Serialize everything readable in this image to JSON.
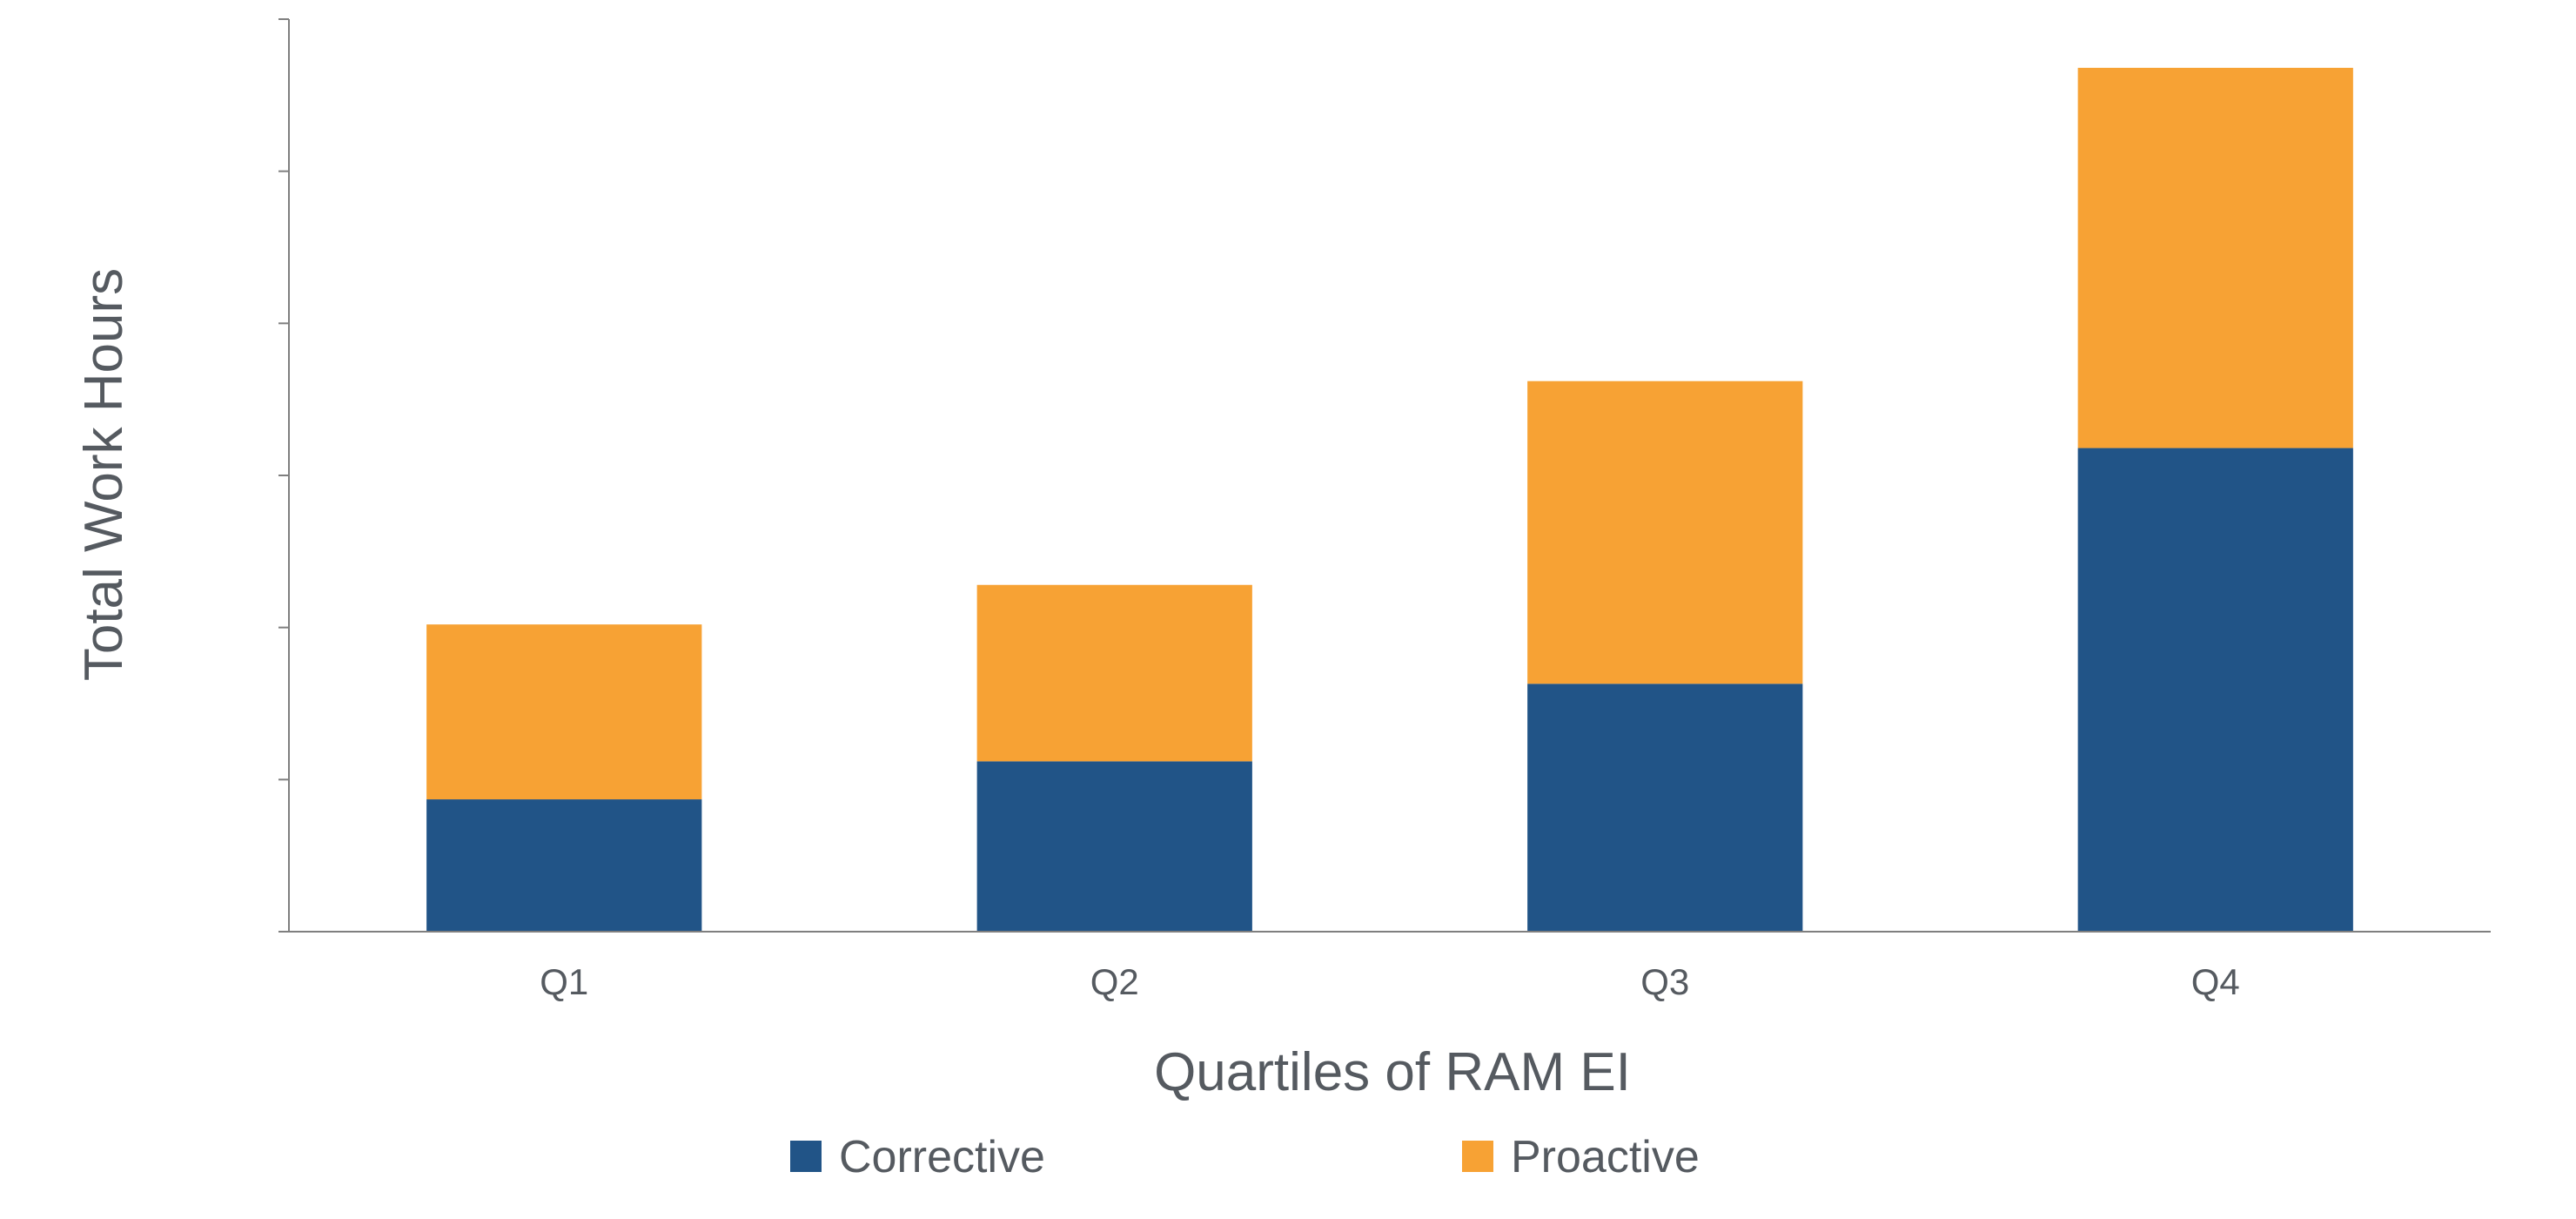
{
  "chart_data": {
    "type": "bar",
    "stacked": true,
    "categories": [
      "Q1",
      "Q2",
      "Q3",
      "Q4"
    ],
    "series": [
      {
        "name": "Corrective",
        "values": [
          0.87,
          1.12,
          1.63,
          3.18
        ],
        "color": "#215487"
      },
      {
        "name": "Proactive",
        "values": [
          1.15,
          1.16,
          1.99,
          2.5
        ],
        "color": "#f7a234"
      }
    ],
    "xlabel": "Quartiles of RAM EI",
    "ylabel": "Total Work Hours",
    "ylim": [
      0,
      6
    ],
    "y_ticks_shown": [
      0,
      1,
      2,
      3,
      4,
      5,
      6
    ],
    "y_tick_labels_visible": false,
    "grid": false,
    "legend_placement": "bottom"
  }
}
